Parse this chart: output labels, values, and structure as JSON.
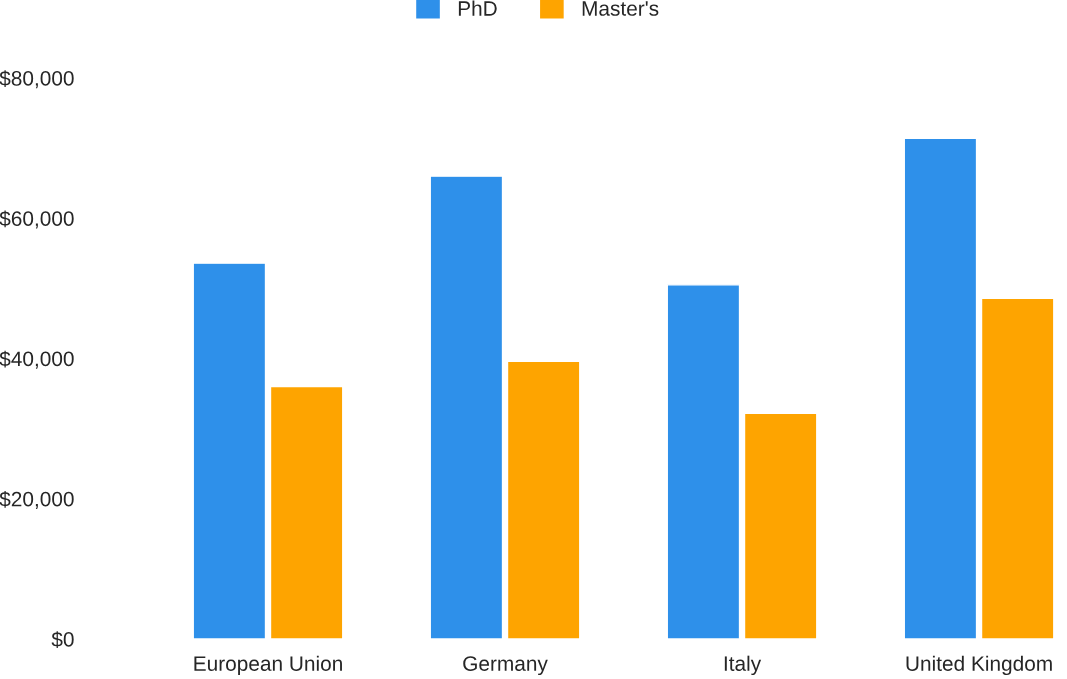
{
  "chart_data": {
    "type": "bar",
    "categories": [
      "European Union",
      "Germany",
      "Italy",
      "United Kingdom"
    ],
    "series": [
      {
        "name": "PhD",
        "color": "#2e90ea",
        "values": [
          53600,
          66000,
          50500,
          71400
        ]
      },
      {
        "name": "Master's",
        "color": "#fea400",
        "values": [
          36000,
          39600,
          32200,
          48600
        ]
      }
    ],
    "ylim": [
      0,
      80000
    ],
    "yticks": [
      {
        "value": 0,
        "label": "$0"
      },
      {
        "value": 20000,
        "label": "$20,000"
      },
      {
        "value": 40000,
        "label": "$40,000"
      },
      {
        "value": 60000,
        "label": "$60,000"
      },
      {
        "value": 80000,
        "label": "$80,000"
      }
    ],
    "grid": false,
    "legend": "top"
  }
}
